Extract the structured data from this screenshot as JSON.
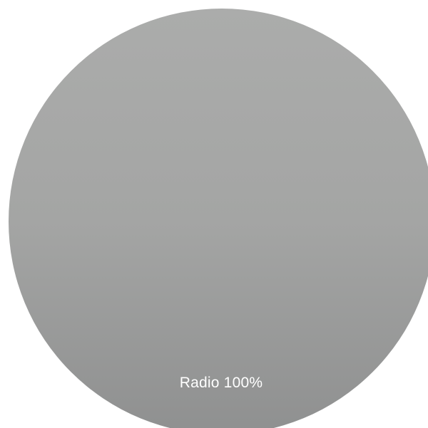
{
  "radio": {
    "label": "Radio 100%",
    "value_percent": 100,
    "colors": {
      "gradient_top": "#abacab",
      "gradient_mid": "#a4a5a4",
      "gradient_bottom": "#8f9090",
      "label_text": "#ffffff",
      "background": "#ffffff"
    }
  }
}
